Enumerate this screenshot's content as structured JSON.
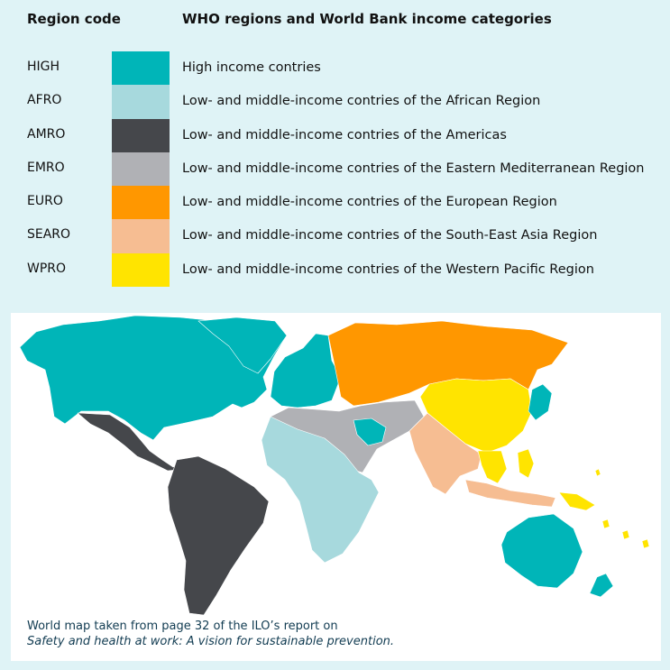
{
  "header": {
    "code_title": "Region code",
    "desc_title": "WHO regions and World Bank income categories"
  },
  "legend": [
    {
      "code": "HIGH",
      "color": "#00b5b8",
      "label": "High income contries"
    },
    {
      "code": "AFRO",
      "color": "#a7d9dd",
      "label": "Low- and middle-income contries of the African Region"
    },
    {
      "code": "AMRO",
      "color": "#45474b",
      "label": "Low- and middle-income contries of the Americas"
    },
    {
      "code": "EMRO",
      "color": "#b0b1b5",
      "label": "Low- and middle-income contries of the Eastern Mediterranean Region"
    },
    {
      "code": "EURO",
      "color": "#ff9700",
      "label": "Low- and middle-income contries of the European Region"
    },
    {
      "code": "SEARO",
      "color": "#f6bd92",
      "label": "Low- and middle-income contries of the South-East Asia Region"
    },
    {
      "code": "WPRO",
      "color": "#ffe400",
      "label": "Low- and middle-income contries of the Western Pacific Region"
    }
  ],
  "caption": {
    "line1": "World map taken from page 32 of the ILO’s report on",
    "line2": "Safety and health at work: A vision for sustainable prevention."
  }
}
